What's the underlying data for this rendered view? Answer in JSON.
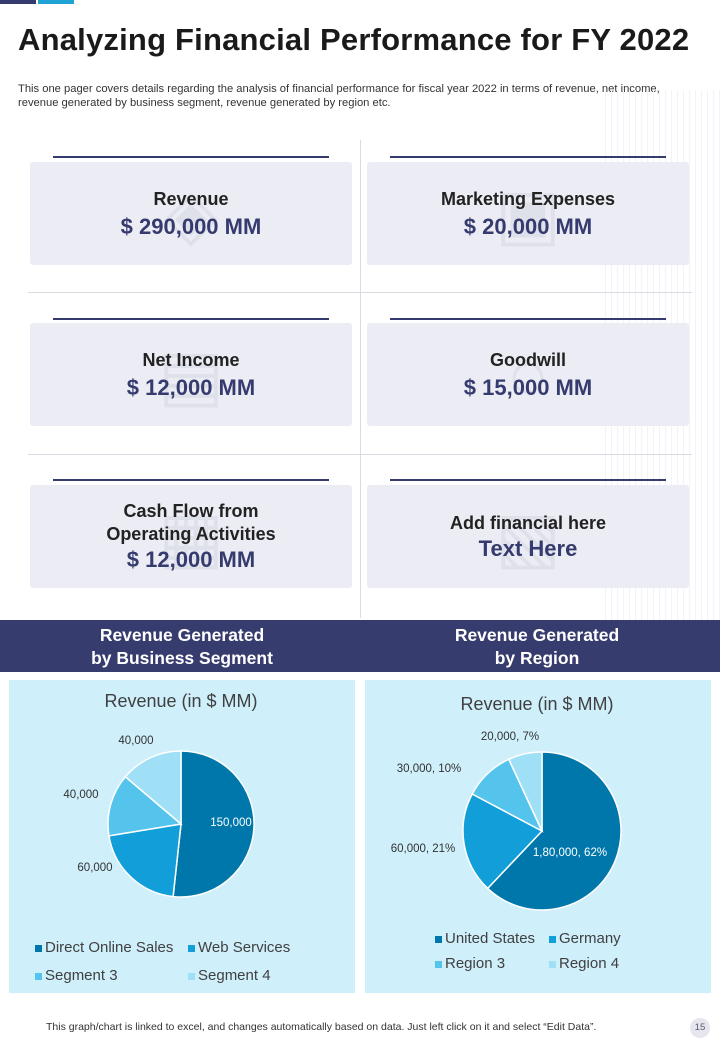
{
  "header": {
    "title": "Analyzing Financial Performance for FY 2022",
    "description": "This one pager covers details regarding the analysis of financial performance for fiscal year 2022 in terms of revenue, net income, revenue generated by business segment, revenue generated by region etc."
  },
  "metrics": [
    {
      "label": "Revenue",
      "value": "$ 290,000 MM",
      "icon": "money-bag-icon"
    },
    {
      "label": "Marketing Expenses",
      "value": "$ 20,000 MM",
      "icon": "marketing-icon"
    },
    {
      "label": "Net Income",
      "value": "$ 12,000 MM",
      "icon": "cash-stack-icon"
    },
    {
      "label": "Goodwill",
      "value": "$ 15,000 MM",
      "icon": "handshake-icon"
    },
    {
      "label": "Cash Flow from\nOperating Activities",
      "value": "$ 12,000 MM",
      "icon": "cash-flow-icon"
    },
    {
      "label": "Add financial here",
      "value": "Text Here",
      "icon": "document-icon"
    }
  ],
  "sections": {
    "segment_heading": "Revenue Generated\nby Business Segment",
    "region_heading": "Revenue Generated\nby Region"
  },
  "colors": {
    "navy": "#363c6d",
    "panel": "#cfeffb",
    "slice1": "#0077aa",
    "slice2": "#129fd9",
    "slice3": "#55c4ec",
    "slice4": "#9fe0f7"
  },
  "chart_data": [
    {
      "type": "pie",
      "title": "Revenue (in $ MM)",
      "categories": [
        "Direct Online Sales",
        "Web Services",
        "Segment 3",
        "Segment 4"
      ],
      "values": [
        150000,
        60000,
        40000,
        40000
      ],
      "data_labels": [
        "150,000",
        "60,000",
        "40,000",
        "40,000"
      ],
      "legend": "bottom"
    },
    {
      "type": "pie",
      "title": "Revenue (in $ MM)",
      "categories": [
        "United States",
        "Germany",
        "Region 3",
        "Region 4"
      ],
      "values": [
        180000,
        60000,
        30000,
        20000
      ],
      "data_labels": [
        "1,80,000, 62%",
        "60,000, 21%",
        "30,000, 10%",
        "20,000, 7%"
      ],
      "legend": "bottom"
    }
  ],
  "footer": {
    "note": "This graph/chart is linked to excel, and changes automatically based on data. Just left click on it and select “Edit Data”.",
    "page_number": "15"
  }
}
